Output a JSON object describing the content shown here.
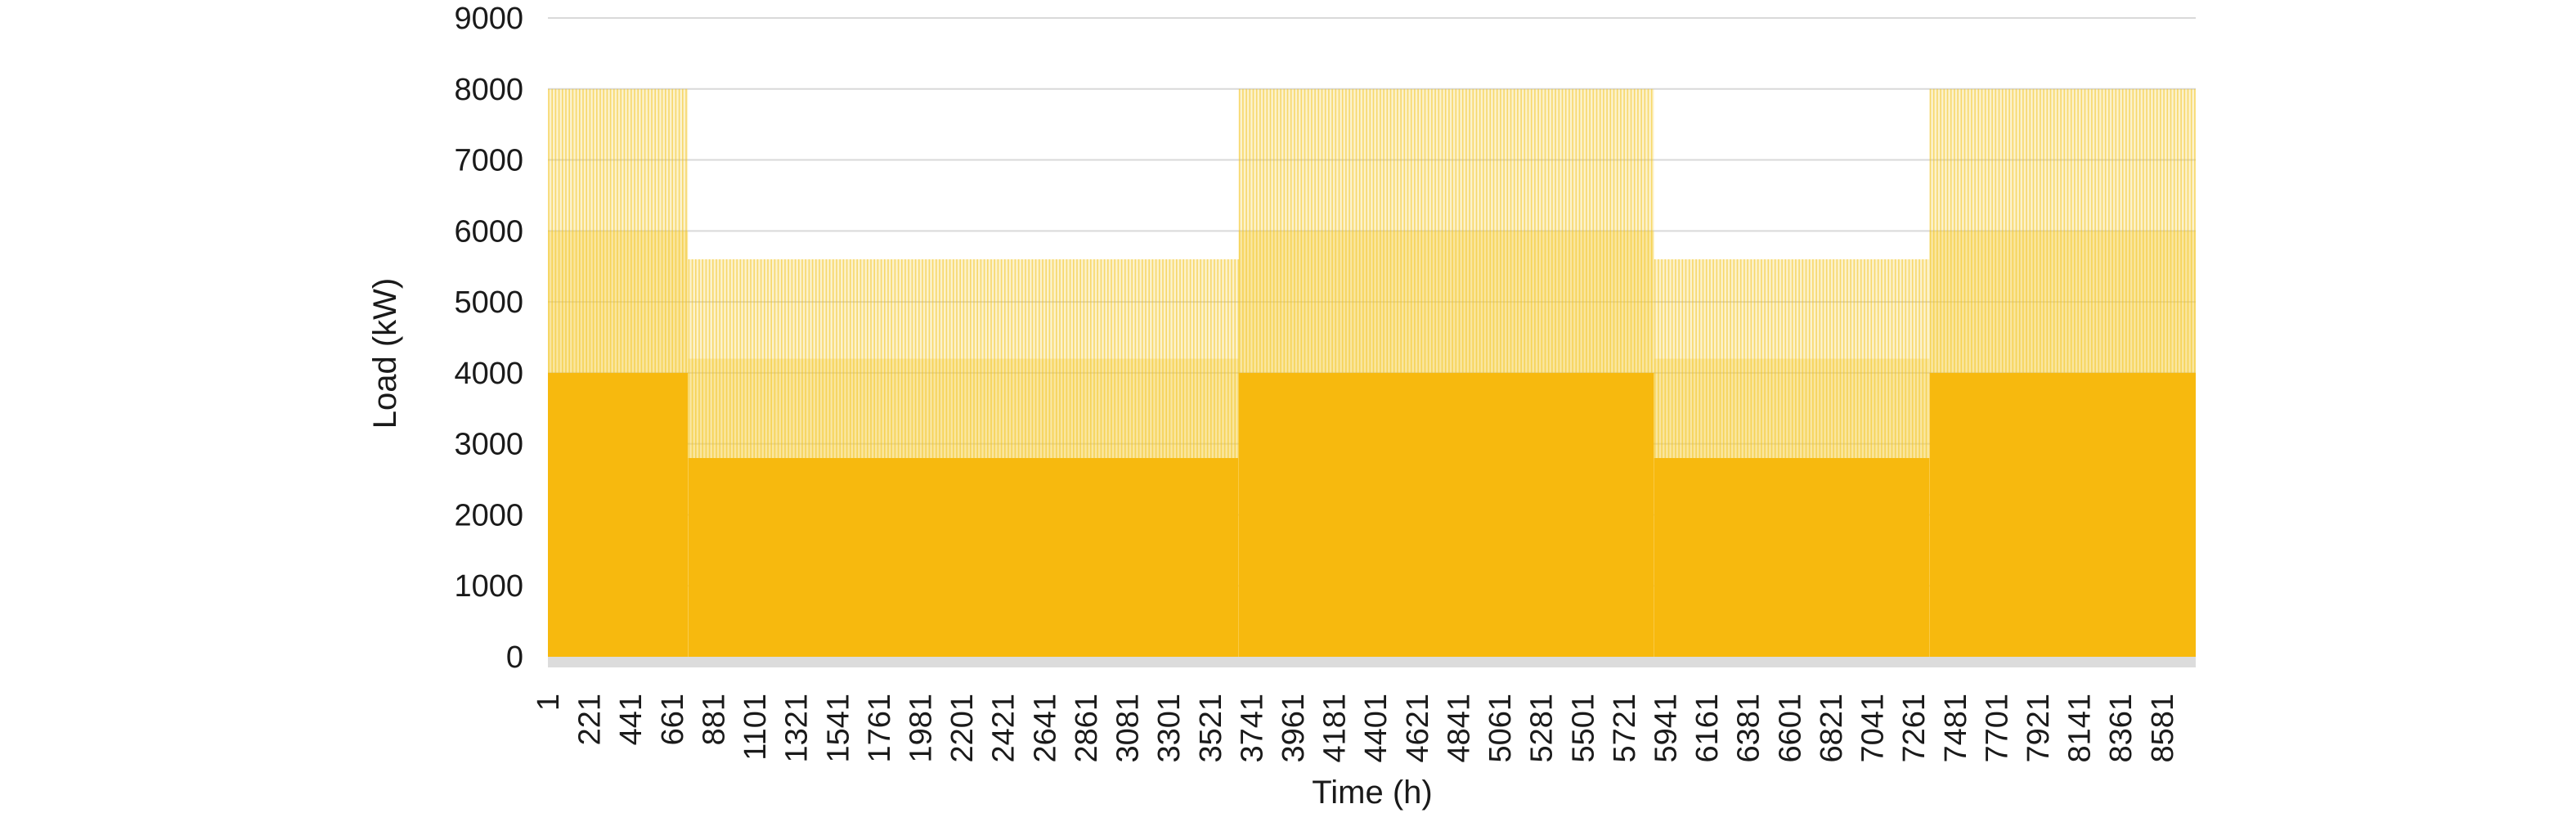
{
  "chart_data": {
    "type": "area",
    "title": "",
    "xlabel": "Time (h)",
    "ylabel": "Load (kW)",
    "xlim": [
      1,
      8760
    ],
    "ylim": [
      0,
      9000
    ],
    "y_ticks": [
      "0",
      "1000",
      "2000",
      "3000",
      "4000",
      "5000",
      "6000",
      "7000",
      "8000",
      "9000"
    ],
    "x_ticks": [
      "1",
      "221",
      "441",
      "661",
      "881",
      "1101",
      "1321",
      "1541",
      "1761",
      "1981",
      "2201",
      "2421",
      "2641",
      "2861",
      "3081",
      "3301",
      "3521",
      "3741",
      "3961",
      "4181",
      "4401",
      "4621",
      "4841",
      "5061",
      "5281",
      "5501",
      "5721",
      "5941",
      "6161",
      "6381",
      "6601",
      "6821",
      "7041",
      "7261",
      "7481",
      "7701",
      "7921",
      "8141",
      "8361",
      "8581"
    ],
    "grid": true,
    "legend": "none",
    "colors": {
      "base": "#f7b90e",
      "peak": "#f5d24a",
      "grid": "#d9d9d9",
      "floor": "#dcdcdc"
    },
    "series": [
      {
        "values_by_period": [
          {
            "start": 1,
            "end": 745,
            "base": 4000,
            "mid": 6000,
            "peak": 8000
          },
          {
            "start": 746,
            "end": 3672,
            "base": 2800,
            "mid": 4200,
            "peak": 5600
          },
          {
            "start": 3673,
            "end": 5880,
            "base": 4000,
            "mid": 6000,
            "peak": 8000
          },
          {
            "start": 5881,
            "end": 7344,
            "base": 2800,
            "mid": 4200,
            "peak": 5600
          },
          {
            "start": 7345,
            "end": 8760,
            "base": 4000,
            "mid": 6000,
            "peak": 8000
          }
        ]
      }
    ]
  }
}
